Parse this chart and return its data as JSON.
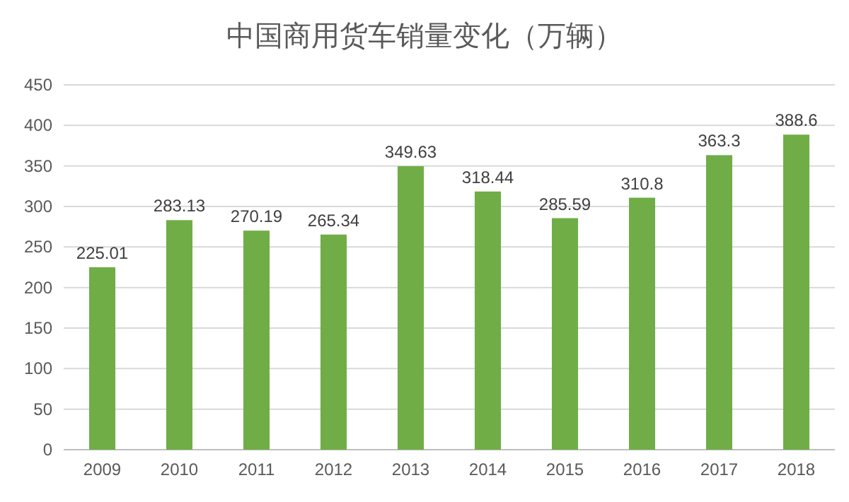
{
  "chart_data": {
    "type": "bar",
    "title": "中国商用货车销量变化（万辆）",
    "categories": [
      "2009",
      "2010",
      "2011",
      "2012",
      "2013",
      "2014",
      "2015",
      "2016",
      "2017",
      "2018"
    ],
    "values": [
      225.01,
      283.13,
      270.19,
      265.34,
      349.63,
      318.44,
      285.59,
      310.8,
      363.3,
      388.6
    ],
    "color": "#70ad47",
    "ylim": [
      0,
      450
    ],
    "yticks": [
      0,
      50,
      100,
      150,
      200,
      250,
      300,
      350,
      400,
      450
    ],
    "grid": "y",
    "data_labels": true
  }
}
